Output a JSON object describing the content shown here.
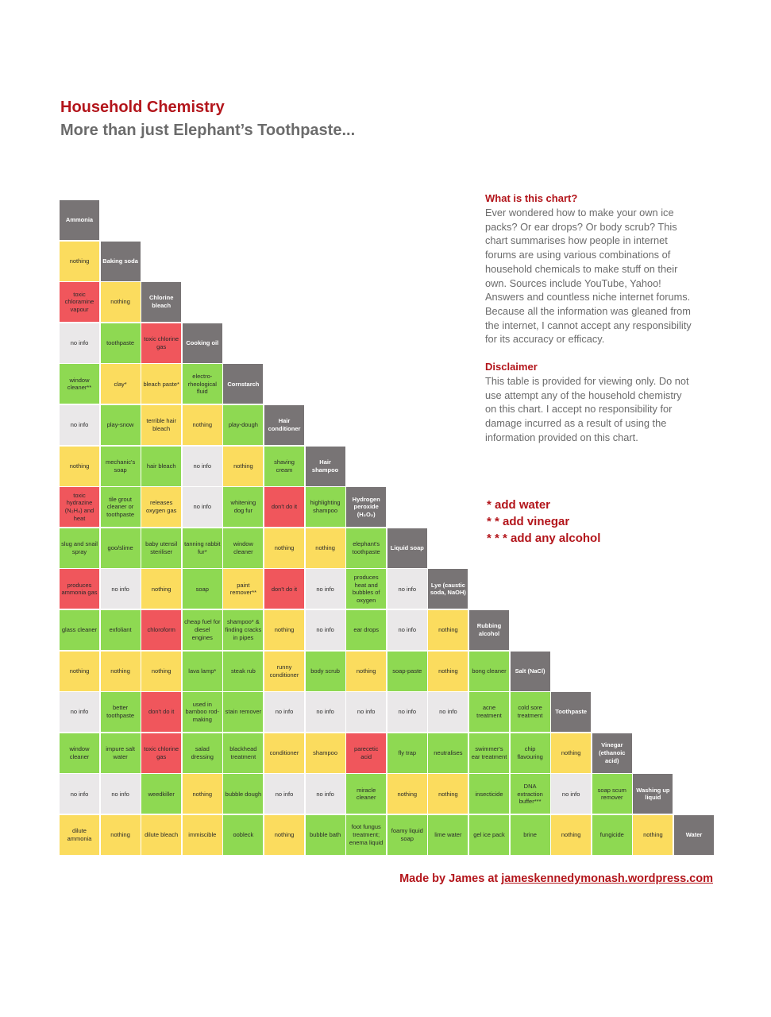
{
  "header": {
    "title": "Household Chemistry",
    "subtitle": "More than just Elephant’s Toothpaste..."
  },
  "colors": {
    "header": "#787475",
    "nothing": "#fbdc5e",
    "useful": "#8ed952",
    "danger": "#f0565c",
    "no_info": "#eae8e9",
    "accent": "#b3151b"
  },
  "chart_data": {
    "type": "table",
    "chemicals": [
      "Ammonia",
      "Baking soda",
      "Chlorine bleach",
      "Cooking oil",
      "Cornstarch",
      "Hair conditioner",
      "Hair shampoo",
      "Hydrogen peroxide (H₂O₂)",
      "Liquid soap",
      "Lye (caustic soda, NaOH)",
      "Rubbing alcohol",
      "Salt (NaCl)",
      "Toothpaste",
      "Vinegar (ethanoic acid)",
      "Washing up liquid",
      "Water"
    ],
    "combinations": [
      [],
      [
        [
          "nothing",
          "n"
        ]
      ],
      [
        [
          "toxic chloramine vapour",
          "d"
        ],
        [
          "nothing",
          "n"
        ]
      ],
      [
        [
          "no info",
          "i"
        ],
        [
          "toothpaste",
          "g"
        ],
        [
          "toxic chlorine gas",
          "d"
        ]
      ],
      [
        [
          "window cleaner**",
          "g"
        ],
        [
          "clay*",
          "n"
        ],
        [
          "bleach paste*",
          "n"
        ],
        [
          "electro-rheological fluid",
          "g"
        ]
      ],
      [
        [
          "no info",
          "i"
        ],
        [
          "play-snow",
          "g"
        ],
        [
          "terrible hair bleach",
          "n"
        ],
        [
          "nothing",
          "n"
        ],
        [
          "play-dough",
          "g"
        ]
      ],
      [
        [
          "nothing",
          "n"
        ],
        [
          "mechanic's soap",
          "g"
        ],
        [
          "hair bleach",
          "g"
        ],
        [
          "no info",
          "i"
        ],
        [
          "nothing",
          "n"
        ],
        [
          "shaving cream",
          "g"
        ]
      ],
      [
        [
          "toxic hydrazine (N₂H₄) and heat",
          "d"
        ],
        [
          "tile grout cleaner or toothpaste",
          "g"
        ],
        [
          "releases oxygen gas",
          "n"
        ],
        [
          "no info",
          "i"
        ],
        [
          "whitening dog fur",
          "g"
        ],
        [
          "don't do it",
          "d"
        ],
        [
          "highlighting shampoo",
          "g"
        ]
      ],
      [
        [
          "slug and snail spray",
          "g"
        ],
        [
          "goo/slime",
          "g"
        ],
        [
          "baby utensil steriliser",
          "g"
        ],
        [
          "tanning rabbit fur*",
          "g"
        ],
        [
          "window cleaner",
          "g"
        ],
        [
          "nothing",
          "n"
        ],
        [
          "nothing",
          "n"
        ],
        [
          "elephant's toothpaste",
          "g"
        ]
      ],
      [
        [
          "produces ammonia gas",
          "d"
        ],
        [
          "no info",
          "i"
        ],
        [
          "nothing",
          "n"
        ],
        [
          "soap",
          "g"
        ],
        [
          "paint remover**",
          "n"
        ],
        [
          "don't do it",
          "d"
        ],
        [
          "no info",
          "i"
        ],
        [
          "produces heat and bubbles of oxygen",
          "g"
        ],
        [
          "no info",
          "i"
        ]
      ],
      [
        [
          "glass cleaner",
          "g"
        ],
        [
          "exfoliant",
          "g"
        ],
        [
          "chloroform",
          "d"
        ],
        [
          "cheap fuel for diesel engines",
          "g"
        ],
        [
          "shampoo* & finding cracks in pipes",
          "g"
        ],
        [
          "nothing",
          "n"
        ],
        [
          "no info",
          "i"
        ],
        [
          "ear drops",
          "g"
        ],
        [
          "no info",
          "i"
        ],
        [
          "nothing",
          "n"
        ]
      ],
      [
        [
          "nothing",
          "n"
        ],
        [
          "nothing",
          "n"
        ],
        [
          "nothing",
          "n"
        ],
        [
          "lava lamp*",
          "g"
        ],
        [
          "steak rub",
          "g"
        ],
        [
          "runny conditioner",
          "n"
        ],
        [
          "body scrub",
          "g"
        ],
        [
          "nothing",
          "n"
        ],
        [
          "soap-paste",
          "g"
        ],
        [
          "nothing",
          "n"
        ],
        [
          "bong cleaner",
          "g"
        ]
      ],
      [
        [
          "no info",
          "i"
        ],
        [
          "better toothpaste",
          "g"
        ],
        [
          "don't do it",
          "d"
        ],
        [
          "used in bamboo rod-making",
          "g"
        ],
        [
          "stain remover",
          "g"
        ],
        [
          "no info",
          "i"
        ],
        [
          "no info",
          "i"
        ],
        [
          "no info",
          "i"
        ],
        [
          "no info",
          "i"
        ],
        [
          "no info",
          "i"
        ],
        [
          "acne treatment",
          "g"
        ],
        [
          "cold sore treatment",
          "g"
        ]
      ],
      [
        [
          "window cleaner",
          "g"
        ],
        [
          "impure salt water",
          "g"
        ],
        [
          "toxic chlorine gas",
          "d"
        ],
        [
          "salad dressing",
          "g"
        ],
        [
          "blackhead treatment",
          "g"
        ],
        [
          "conditioner",
          "n"
        ],
        [
          "shampoo",
          "n"
        ],
        [
          "parecetic acid",
          "d"
        ],
        [
          "fly trap",
          "g"
        ],
        [
          "neutralises",
          "g"
        ],
        [
          "swimmer's ear treatment",
          "g"
        ],
        [
          "chip flavouring",
          "g"
        ],
        [
          "nothing",
          "n"
        ]
      ],
      [
        [
          "no info",
          "i"
        ],
        [
          "no info",
          "i"
        ],
        [
          "weedkiller",
          "g"
        ],
        [
          "nothing",
          "n"
        ],
        [
          "bubble dough",
          "g"
        ],
        [
          "no info",
          "i"
        ],
        [
          "no info",
          "i"
        ],
        [
          "miracle cleaner",
          "g"
        ],
        [
          "nothing",
          "n"
        ],
        [
          "nothing",
          "n"
        ],
        [
          "insecticide",
          "g"
        ],
        [
          "DNA extraction buffer***",
          "g"
        ],
        [
          "no info",
          "i"
        ],
        [
          "soap scum remover",
          "g"
        ]
      ],
      [
        [
          "dilute ammonia",
          "n"
        ],
        [
          "nothing",
          "n"
        ],
        [
          "dilute bleach",
          "n"
        ],
        [
          "immiscible",
          "n"
        ],
        [
          "oobleck",
          "g"
        ],
        [
          "nothing",
          "n"
        ],
        [
          "bubble bath",
          "g"
        ],
        [
          "foot fungus treatment; enema liquid",
          "g"
        ],
        [
          "foamy liquid soap",
          "g"
        ],
        [
          "lime water",
          "g"
        ],
        [
          "gel ice pack",
          "g"
        ],
        [
          "brine",
          "g"
        ],
        [
          "nothing",
          "n"
        ],
        [
          "fungicide",
          "g"
        ],
        [
          "nothing",
          "n"
        ]
      ]
    ]
  },
  "sidebar": {
    "what_heading": "What is this chart?",
    "what_text": "Ever wondered how to make your own ice packs? Or ear drops? Or body scrub? This chart summarises how people in internet forums are using various combinations of household chemicals to make stuff on their own. Sources include YouTube, Yahoo! Answers and countless niche internet forums. Because all the information was gleaned from the internet, I cannot accept any responsibility for its accuracy or efficacy.",
    "disclaimer_heading": "Disclaimer",
    "disclaimer_text": "This table is provided for viewing only. Do not use attempt any of the household chemistry on this chart. I accept no responsibility for damage incurred as a result of using the information provided on this chart."
  },
  "legend": [
    "*  add water",
    "* *  add vinegar",
    "* * *  add any alcohol"
  ],
  "footer": {
    "credit_prefix": "Made by James at ",
    "credit_link": "jameskennedymonash.wordpress.com"
  }
}
